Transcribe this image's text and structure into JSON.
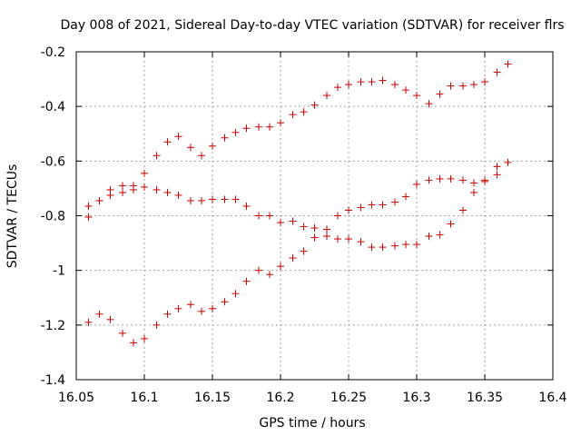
{
  "chart_data": {
    "type": "scatter",
    "title": "Day 008 of 2021, Sidereal Day-to-day VTEC variation (SDTVAR) for receiver flrs",
    "xlabel": "GPS time / hours",
    "ylabel": "SDTVAR / TECUs",
    "xlim": [
      16.05,
      16.4
    ],
    "ylim": [
      -1.4,
      -0.2
    ],
    "xticks": [
      16.05,
      16.1,
      16.15,
      16.2,
      16.25,
      16.3,
      16.35,
      16.4
    ],
    "xtick_labels": [
      "16.05",
      "16.1",
      "16.15",
      "16.2",
      "16.25",
      "16.3",
      "16.35",
      "16.4"
    ],
    "yticks": [
      -1.4,
      -1.2,
      -1.0,
      -0.8,
      -0.6,
      -0.4,
      -0.2
    ],
    "ytick_labels": [
      "-1.4",
      "-1.2",
      "-1",
      "-0.8",
      "-0.6",
      "-0.4",
      "-0.2"
    ],
    "grid": true,
    "marker": "+",
    "color": "#cc0000",
    "series": [
      {
        "points": [
          [
            16.059,
            -0.805
          ],
          [
            16.059,
            -0.765
          ],
          [
            16.067,
            -0.745
          ],
          [
            16.075,
            -0.725
          ],
          [
            16.075,
            -0.705
          ],
          [
            16.084,
            -0.69
          ],
          [
            16.092,
            -0.69
          ],
          [
            16.1,
            -0.645
          ],
          [
            16.109,
            -0.58
          ],
          [
            16.117,
            -0.53
          ],
          [
            16.125,
            -0.51
          ],
          [
            16.134,
            -0.55
          ],
          [
            16.142,
            -0.58
          ],
          [
            16.15,
            -0.545
          ],
          [
            16.159,
            -0.515
          ],
          [
            16.167,
            -0.495
          ],
          [
            16.175,
            -0.48
          ],
          [
            16.184,
            -0.475
          ],
          [
            16.192,
            -0.475
          ],
          [
            16.2,
            -0.46
          ],
          [
            16.209,
            -0.43
          ],
          [
            16.217,
            -0.42
          ],
          [
            16.225,
            -0.395
          ],
          [
            16.234,
            -0.36
          ],
          [
            16.242,
            -0.33
          ],
          [
            16.25,
            -0.32
          ],
          [
            16.259,
            -0.31
          ],
          [
            16.267,
            -0.31
          ],
          [
            16.275,
            -0.305
          ],
          [
            16.284,
            -0.32
          ],
          [
            16.292,
            -0.34
          ],
          [
            16.3,
            -0.36
          ],
          [
            16.309,
            -0.39
          ],
          [
            16.317,
            -0.355
          ],
          [
            16.325,
            -0.325
          ],
          [
            16.334,
            -0.325
          ],
          [
            16.342,
            -0.32
          ],
          [
            16.35,
            -0.31
          ],
          [
            16.359,
            -0.275
          ],
          [
            16.367,
            -0.245
          ]
        ]
      },
      {
        "points": [
          [
            16.067,
            -0.745
          ],
          [
            16.084,
            -0.715
          ],
          [
            16.092,
            -0.705
          ],
          [
            16.1,
            -0.695
          ],
          [
            16.109,
            -0.705
          ],
          [
            16.117,
            -0.715
          ],
          [
            16.125,
            -0.725
          ],
          [
            16.134,
            -0.745
          ],
          [
            16.142,
            -0.745
          ],
          [
            16.15,
            -0.74
          ],
          [
            16.159,
            -0.74
          ],
          [
            16.167,
            -0.74
          ],
          [
            16.175,
            -0.765
          ],
          [
            16.184,
            -0.8
          ],
          [
            16.192,
            -0.8
          ],
          [
            16.2,
            -0.825
          ],
          [
            16.209,
            -0.82
          ],
          [
            16.217,
            -0.84
          ],
          [
            16.225,
            -0.845
          ],
          [
            16.234,
            -0.85
          ],
          [
            16.242,
            -0.8
          ],
          [
            16.25,
            -0.78
          ],
          [
            16.259,
            -0.77
          ],
          [
            16.267,
            -0.76
          ],
          [
            16.275,
            -0.76
          ],
          [
            16.284,
            -0.75
          ],
          [
            16.292,
            -0.73
          ],
          [
            16.3,
            -0.685
          ],
          [
            16.309,
            -0.67
          ],
          [
            16.317,
            -0.665
          ],
          [
            16.325,
            -0.665
          ],
          [
            16.334,
            -0.67
          ],
          [
            16.342,
            -0.68
          ],
          [
            16.35,
            -0.675
          ],
          [
            16.359,
            -0.65
          ],
          [
            16.367,
            -0.605
          ]
        ]
      },
      {
        "points": [
          [
            16.059,
            -1.19
          ],
          [
            16.067,
            -1.16
          ],
          [
            16.075,
            -1.18
          ],
          [
            16.084,
            -1.23
          ],
          [
            16.092,
            -1.265
          ],
          [
            16.1,
            -1.25
          ],
          [
            16.109,
            -1.2
          ],
          [
            16.117,
            -1.16
          ],
          [
            16.125,
            -1.14
          ],
          [
            16.134,
            -1.125
          ],
          [
            16.142,
            -1.15
          ],
          [
            16.15,
            -1.14
          ],
          [
            16.159,
            -1.115
          ],
          [
            16.167,
            -1.085
          ],
          [
            16.175,
            -1.04
          ],
          [
            16.184,
            -1.0
          ],
          [
            16.192,
            -1.015
          ],
          [
            16.2,
            -0.985
          ],
          [
            16.209,
            -0.955
          ],
          [
            16.217,
            -0.93
          ],
          [
            16.225,
            -0.88
          ],
          [
            16.234,
            -0.875
          ],
          [
            16.242,
            -0.885
          ],
          [
            16.25,
            -0.885
          ],
          [
            16.259,
            -0.895
          ],
          [
            16.267,
            -0.915
          ],
          [
            16.275,
            -0.915
          ],
          [
            16.284,
            -0.91
          ],
          [
            16.292,
            -0.905
          ],
          [
            16.3,
            -0.905
          ],
          [
            16.309,
            -0.875
          ],
          [
            16.317,
            -0.87
          ],
          [
            16.325,
            -0.83
          ],
          [
            16.334,
            -0.78
          ],
          [
            16.342,
            -0.715
          ],
          [
            16.35,
            -0.67
          ],
          [
            16.359,
            -0.62
          ]
        ]
      }
    ]
  }
}
